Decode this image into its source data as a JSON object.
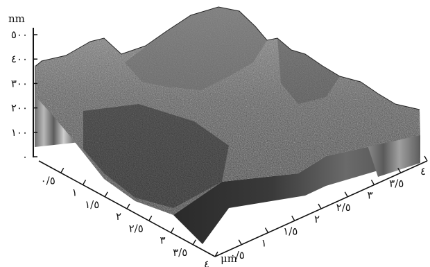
{
  "figure": {
    "z_unit": "nm",
    "xy_unit": "μm",
    "z_ticks": [
      "٠",
      "١٠٠",
      "٢٠٠",
      "٣٠٠",
      "٤٠٠",
      "٥٠٠"
    ],
    "front_ticks": [
      "٠/٥",
      "١",
      "١/٥",
      "٢",
      "٢/٥",
      "٣",
      "٣/٥",
      "٤"
    ],
    "right_ticks": [
      "٠/٥",
      "١",
      "١/٥",
      "٢",
      "٢/٥",
      "٣",
      "٣/٥",
      "٤"
    ]
  },
  "colors": {
    "surface_dark": "#1c1c1c",
    "surface_mid": "#5a5a5a",
    "surface_light": "#cfcfcf",
    "axis": "#111111"
  }
}
